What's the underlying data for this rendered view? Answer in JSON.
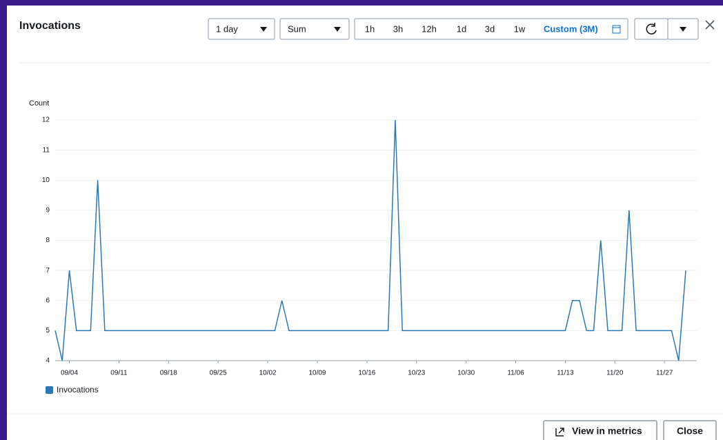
{
  "header": {
    "title": "Invocations"
  },
  "controls": {
    "period": "1 day",
    "statistic": "Sum",
    "ranges": [
      "1h",
      "3h",
      "12h",
      "1d",
      "3d",
      "1w"
    ],
    "custom_range": "Custom (3M)"
  },
  "footer": {
    "view_button": "View in metrics",
    "close_button": "Close"
  },
  "chart_data": {
    "type": "line",
    "y_label": "Count",
    "categories": [
      null,
      null,
      "09/04",
      null,
      null,
      null,
      null,
      null,
      null,
      "09/11",
      null,
      null,
      null,
      null,
      null,
      null,
      "09/18",
      null,
      null,
      null,
      null,
      null,
      null,
      "09/25",
      null,
      null,
      null,
      null,
      null,
      null,
      "10/02",
      null,
      null,
      null,
      null,
      null,
      null,
      "10/09",
      null,
      null,
      null,
      null,
      null,
      null,
      "10/16",
      null,
      null,
      null,
      null,
      null,
      null,
      "10/23",
      null,
      null,
      null,
      null,
      null,
      null,
      "10/30",
      null,
      null,
      null,
      null,
      null,
      null,
      "11/06",
      null,
      null,
      null,
      null,
      null,
      null,
      "11/13",
      null,
      null,
      null,
      null,
      null,
      null,
      "11/20",
      null,
      null,
      null,
      null,
      null,
      null,
      "11/27",
      null,
      null,
      null
    ],
    "series": [
      {
        "name": "Invocations",
        "color": "#2a78b6",
        "values": [
          5,
          4,
          7,
          5,
          5,
          5,
          10,
          5,
          5,
          5,
          5,
          5,
          5,
          5,
          5,
          5,
          5,
          5,
          5,
          5,
          5,
          5,
          5,
          5,
          5,
          5,
          5,
          5,
          5,
          5,
          5,
          5,
          6,
          5,
          5,
          5,
          5,
          5,
          5,
          5,
          5,
          5,
          5,
          5,
          5,
          5,
          5,
          5,
          12,
          5,
          5,
          5,
          5,
          5,
          5,
          5,
          5,
          5,
          5,
          5,
          5,
          5,
          5,
          5,
          5,
          5,
          5,
          5,
          5,
          5,
          5,
          5,
          5,
          6,
          6,
          5,
          5,
          8,
          5,
          5,
          5,
          9,
          5,
          5,
          5,
          5,
          5,
          5,
          4,
          7
        ]
      }
    ],
    "ylim": [
      4,
      12
    ],
    "yticks": [
      4,
      5,
      6,
      7,
      8,
      9,
      10,
      11,
      12
    ],
    "grid": true
  }
}
